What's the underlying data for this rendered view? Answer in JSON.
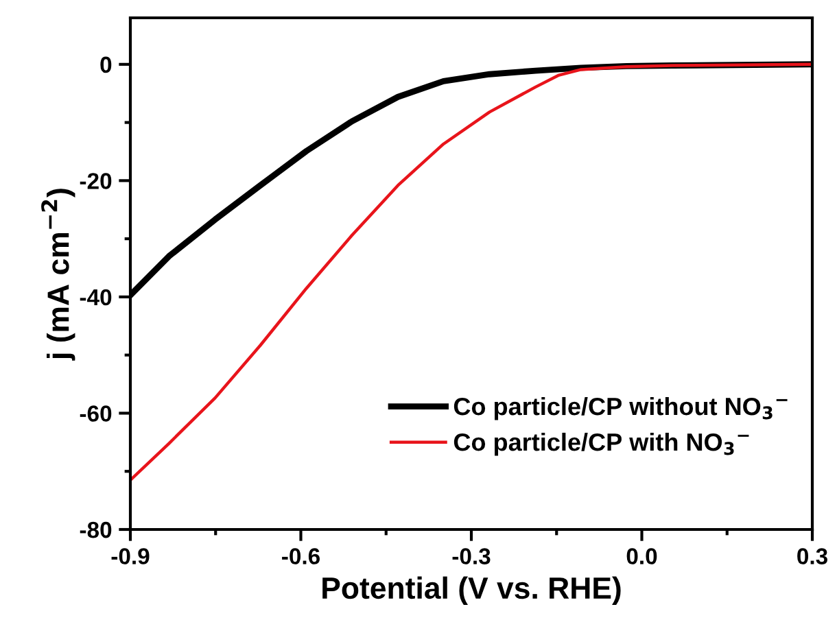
{
  "chart_data": {
    "type": "line",
    "xlabel": "Potential (V vs. RHE)",
    "ylabel": "j (mA cm$^{−2}$)",
    "xlim": [
      -0.9,
      0.3
    ],
    "xticks": [
      {
        "value": -0.9,
        "label": "-0.9"
      },
      {
        "value": -0.6,
        "label": "-0.6"
      },
      {
        "value": -0.3,
        "label": "-0.3"
      },
      {
        "value": 0.0,
        "label": "0.0"
      },
      {
        "value": 0.3,
        "label": "0.3"
      }
    ],
    "ylim": [
      -80,
      8
    ],
    "yticks": [
      {
        "value": -80,
        "label": "-80"
      },
      {
        "value": -60,
        "label": "-60"
      },
      {
        "value": -40,
        "label": "-40"
      },
      {
        "value": -20,
        "label": "-20"
      },
      0
    ],
    "legend": "bottom right",
    "grid": false,
    "line_style": "solid",
    "marker": "none",
    "series": [
      {
        "name": "Co particle/CP without NO$_{3}$$^{−}$",
        "color": "#000000",
        "x": [
          -0.9,
          -0.832,
          -0.751,
          -0.671,
          -0.59,
          -0.51,
          -0.429,
          -0.349,
          -0.268,
          -0.187,
          -0.107,
          -0.027,
          0.054,
          0.3
        ],
        "values": [
          -39.7,
          -33,
          -26.7,
          -20.8,
          -14.9,
          -9.8,
          -5.6,
          -2.9,
          -1.7,
          -1.1,
          -0.6,
          -0.3,
          -0.2,
          0
        ]
      },
      {
        "name": "Co particle/CP with NO$_{3}$$^{−}$",
        "color": "#e8141b",
        "x": [
          -0.9,
          -0.832,
          -0.751,
          -0.671,
          -0.59,
          -0.51,
          -0.429,
          -0.349,
          -0.268,
          -0.187,
          -0.147,
          -0.107,
          -0.027,
          0.054,
          0.3
        ],
        "values": [
          -71.5,
          -65.2,
          -57.4,
          -48.3,
          -38.5,
          -29.4,
          -20.8,
          -13.7,
          -8.2,
          -3.9,
          -1.9,
          -0.9,
          -0.4,
          -0.2,
          0
        ]
      }
    ]
  }
}
